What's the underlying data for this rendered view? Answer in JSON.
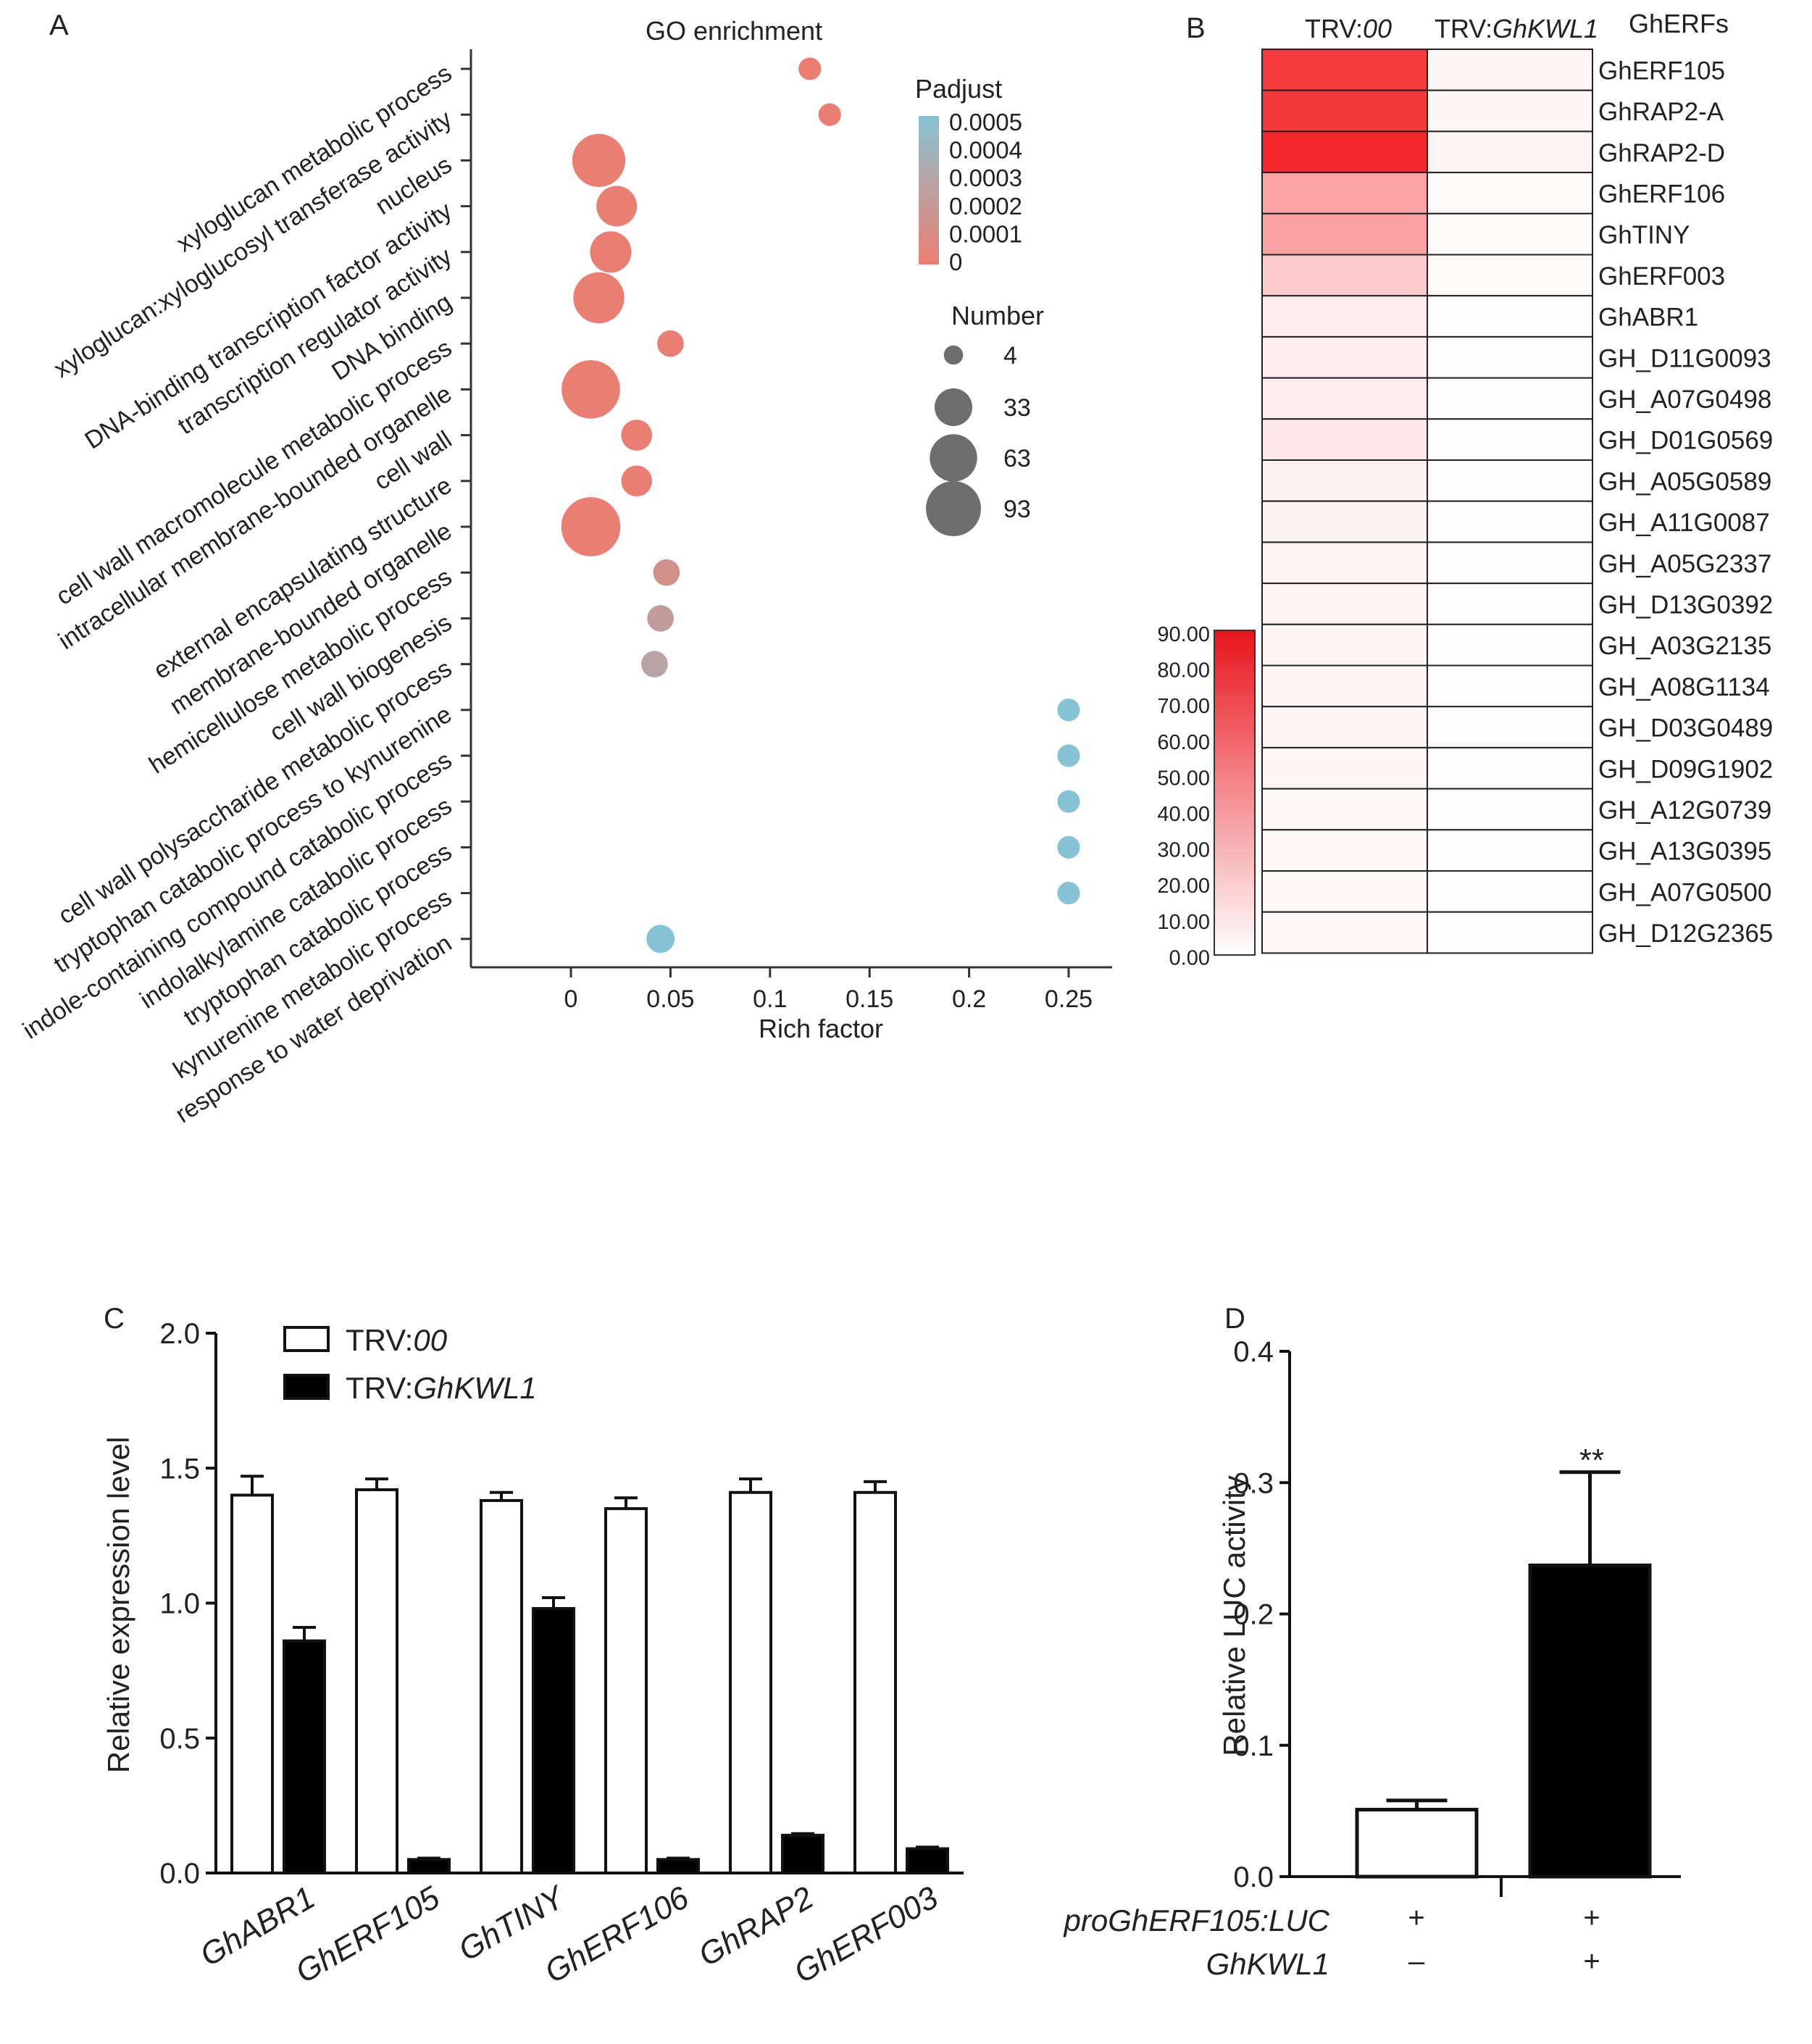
{
  "panel_letters": {
    "a": "A",
    "b": "B",
    "c": "C",
    "d": "D"
  },
  "colors": {
    "red": "#f2282d",
    "salmon": "#ea7e72",
    "grey": "#b8a4a4",
    "blue": "#86c3d4",
    "bar_black": "#000000"
  },
  "chart_data": [
    {
      "id": "A",
      "type": "scatter",
      "title": "GO enrichment",
      "xlabel": "Rich factor",
      "x_ticks": [
        "0",
        "0.05",
        "0.1",
        "0.15",
        "0.2",
        "0.25"
      ],
      "xlim": [
        -0.05,
        0.275
      ],
      "terms": [
        {
          "label": "xyloglucan metabolic process",
          "rich": 0.12,
          "number": 4,
          "padjust": 0.0
        },
        {
          "label": "xyloglucan:xyloglucosyl transferase activity",
          "rich": 0.13,
          "number": 4,
          "padjust": 0.0
        },
        {
          "label": "nucleus",
          "rich": 0.014,
          "number": 70,
          "padjust": 0.0
        },
        {
          "label": "DNA-binding transcription factor activity",
          "rich": 0.023,
          "number": 33,
          "padjust": 0.0
        },
        {
          "label": "transcription regulator activity",
          "rich": 0.02,
          "number": 35,
          "padjust": 0.0
        },
        {
          "label": "DNA binding",
          "rich": 0.014,
          "number": 63,
          "padjust": 0.0
        },
        {
          "label": "cell wall macromolecule metabolic process",
          "rich": 0.05,
          "number": 8,
          "padjust": 0.0
        },
        {
          "label": "intracellular membrane-bounded organelle",
          "rich": 0.01,
          "number": 90,
          "padjust": 0.0
        },
        {
          "label": "cell wall",
          "rich": 0.033,
          "number": 14,
          "padjust": 0.0
        },
        {
          "label": "external encapsulating structure",
          "rich": 0.033,
          "number": 14,
          "padjust": 0.0
        },
        {
          "label": "membrane-bounded organelle",
          "rich": 0.01,
          "number": 93,
          "padjust": 0.0
        },
        {
          "label": "hemicellulose metabolic process",
          "rich": 0.048,
          "number": 8,
          "padjust": 0.00012
        },
        {
          "label": "cell wall biogenesis",
          "rich": 0.045,
          "number": 8,
          "padjust": 0.0002
        },
        {
          "label": "cell wall polysaccharide metabolic process",
          "rich": 0.042,
          "number": 8,
          "padjust": 0.00025
        },
        {
          "label": "tryptophan catabolic process to kynurenine",
          "rich": 0.25,
          "number": 4,
          "padjust": 0.0005
        },
        {
          "label": "indole-containing compound catabolic process",
          "rich": 0.25,
          "number": 4,
          "padjust": 0.0005
        },
        {
          "label": "indolalkylamine catabolic process",
          "rich": 0.25,
          "number": 4,
          "padjust": 0.0005
        },
        {
          "label": "tryptophan catabolic process",
          "rich": 0.25,
          "number": 4,
          "padjust": 0.0005
        },
        {
          "label": "kynurenine metabolic process",
          "rich": 0.25,
          "number": 4,
          "padjust": 0.0005
        },
        {
          "label": "response to water deprivation",
          "rich": 0.045,
          "number": 10,
          "padjust": 0.0005
        }
      ],
      "legend_color": {
        "title": "Padjust",
        "ticks": [
          "0.0005",
          "0.0004",
          "0.0003",
          "0.0002",
          "0.0001",
          "0"
        ]
      },
      "legend_size": {
        "title": "Number",
        "values": [
          4,
          33,
          63,
          93
        ],
        "labels": [
          "4",
          "33",
          "63",
          "93"
        ]
      }
    },
    {
      "id": "B",
      "type": "heatmap",
      "columns": [
        {
          "prefix": "TRV:",
          "suffix": "00"
        },
        {
          "prefix": "TRV:",
          "suffix": "GhKWL1"
        }
      ],
      "rows_header": "GhERFs",
      "rows": [
        "GhERF105",
        "GhRAP2-A",
        "GhRAP2-D",
        "GhERF106",
        "GhTINY",
        "GhERF003",
        "GhABR1",
        "GH_D11G0093",
        "GH_A07G0498",
        "GH_D01G0569",
        "GH_A05G0589",
        "GH_A11G0087",
        "GH_A05G2337",
        "GH_D13G0392",
        "GH_A03G2135",
        "GH_A08G1134",
        "GH_D03G0489",
        "GH_D09G1902",
        "GH_A12G0739",
        "GH_A13G0395",
        "GH_A07G0500",
        "GH_D12G2365"
      ],
      "values": [
        [
          82,
          4
        ],
        [
          83,
          4
        ],
        [
          92,
          5
        ],
        [
          38,
          2
        ],
        [
          39,
          2
        ],
        [
          22,
          2
        ],
        [
          8,
          1
        ],
        [
          7,
          1
        ],
        [
          8,
          1
        ],
        [
          10,
          1
        ],
        [
          6,
          1
        ],
        [
          6,
          1
        ],
        [
          5,
          1
        ],
        [
          5,
          1
        ],
        [
          4,
          1
        ],
        [
          4,
          1
        ],
        [
          4,
          1
        ],
        [
          4,
          1
        ],
        [
          3,
          1
        ],
        [
          3,
          1
        ],
        [
          3,
          1
        ],
        [
          3,
          1
        ]
      ],
      "scale": {
        "min": 0,
        "max": 90,
        "ticks": [
          "90.00",
          "80.00",
          "70.00",
          "60.00",
          "50.00",
          "40.00",
          "30.00",
          "20.00",
          "10.00",
          "0.00"
        ]
      }
    },
    {
      "id": "C",
      "type": "bar",
      "ylabel": "Relative expression level",
      "ylim": [
        0,
        2.0
      ],
      "y_ticks": [
        "0.0",
        "0.5",
        "1.0",
        "1.5",
        "2.0"
      ],
      "categories": [
        "GhABR1",
        "GhERF105",
        "GhTINY",
        "GhERF106",
        "GhRAP2",
        "GhERF003"
      ],
      "series": [
        {
          "name_prefix": "TRV:",
          "name_suffix": "00",
          "values": [
            1.4,
            1.42,
            1.38,
            1.35,
            1.41,
            1.41
          ],
          "errors": [
            0.07,
            0.04,
            0.03,
            0.04,
            0.05,
            0.04
          ]
        },
        {
          "name_prefix": "TRV:",
          "name_suffix": "GhKWL1",
          "values": [
            0.86,
            0.05,
            0.98,
            0.05,
            0.14,
            0.09
          ],
          "errors": [
            0.05,
            0.005,
            0.04,
            0.005,
            0.006,
            0.006
          ]
        }
      ]
    },
    {
      "id": "D",
      "type": "bar",
      "ylabel": "Relative LUC activity",
      "ylim": [
        0,
        0.4
      ],
      "y_ticks": [
        "0.0",
        "0.1",
        "0.2",
        "0.3",
        "0.4"
      ],
      "values": [
        0.051,
        0.237
      ],
      "errors": [
        0.007,
        0.071
      ],
      "significance": "**",
      "row_labels": [
        "proGhERF105:LUC",
        "GhKWL1"
      ],
      "conditions": [
        [
          "+",
          "+"
        ],
        [
          "–",
          "+"
        ]
      ]
    }
  ]
}
